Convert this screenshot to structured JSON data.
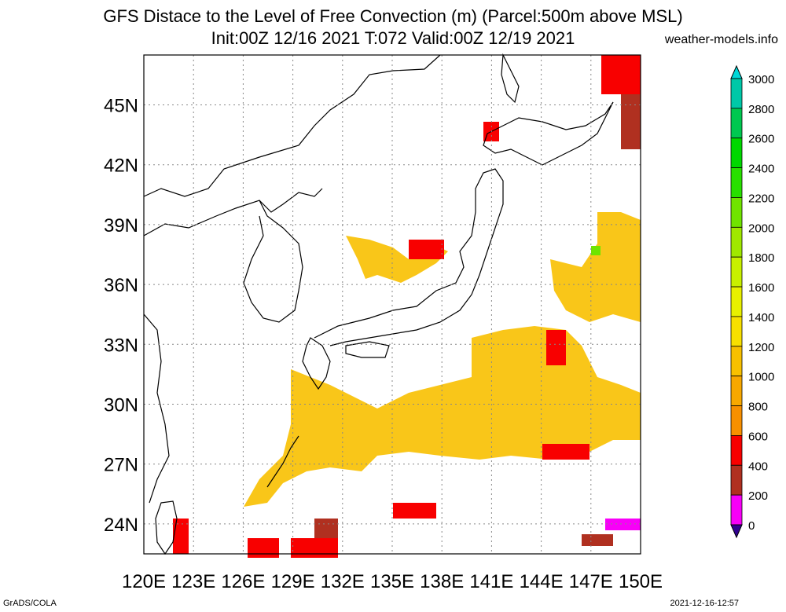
{
  "title_line1": "GFS Distace to the Level of Free Convection (m) (Parcel:500m above MSL)",
  "title_line2": "Init:00Z 12/16 2021 T:072 Valid:00Z 12/19 2021",
  "site": "weather-models.info",
  "footer_left": "GrADS/COLA",
  "footer_right": "2021-12-16-12:57",
  "lon_labels": [
    "120E",
    "123E",
    "126E",
    "129E",
    "132E",
    "135E",
    "138E",
    "141E",
    "144E",
    "147E",
    "150E"
  ],
  "lat_labels": [
    "45N",
    "42N",
    "39N",
    "36N",
    "33N",
    "30N",
    "27N",
    "24N"
  ],
  "colorbar": {
    "levels": [
      "3000",
      "2800",
      "2600",
      "2400",
      "2200",
      "2000",
      "1800",
      "1600",
      "1400",
      "1200",
      "1000",
      "800",
      "600",
      "400",
      "200",
      "0"
    ],
    "colors": [
      "#00d8d8",
      "#00c8a8",
      "#00c850",
      "#00d800",
      "#28e000",
      "#70e400",
      "#a0e800",
      "#c8f000",
      "#e8f000",
      "#f8e000",
      "#f8c000",
      "#f8a800",
      "#f89000",
      "#f80000",
      "#b03020",
      "#f800f8",
      "#300090"
    ]
  },
  "map_extent": {
    "lon_min": 120,
    "lon_max": 150,
    "lat_min": 22.5,
    "lat_max": 47.5
  }
}
